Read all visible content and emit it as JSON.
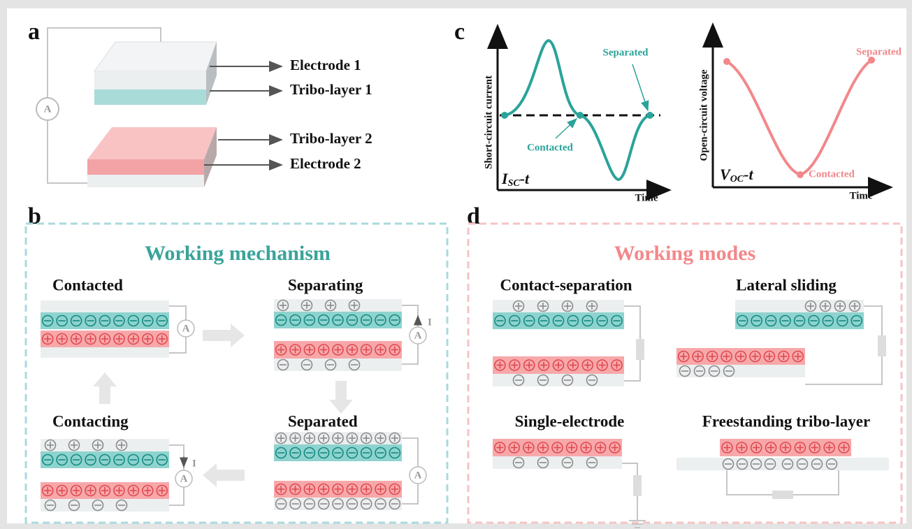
{
  "panel_a": {
    "label": "a",
    "ammeter": "A",
    "layers": [
      "Electrode 1",
      "Tribo-layer 1",
      "Tribo-layer 2",
      "Electrode 2"
    ]
  },
  "panel_b": {
    "label": "b",
    "title": "Working mechanism",
    "ammeter": "A",
    "current": "I",
    "states": [
      "Contacted",
      "Separating",
      "Contacting",
      "Separated"
    ]
  },
  "panel_c": {
    "label": "c",
    "charts": [
      {
        "y_label": "Short-circuit current",
        "x_label": "Time",
        "name": {
          "main": "I",
          "sub": "SC",
          "suffix": "-t"
        },
        "annotations": [
          "Separated",
          "Contacted"
        ]
      },
      {
        "y_label": "Open-circuit voltage",
        "x_label": "Time",
        "name": {
          "main": "V",
          "sub": "OC",
          "suffix": "-t"
        },
        "annotations": [
          "Separated",
          "Contacted"
        ]
      }
    ]
  },
  "panel_d": {
    "label": "d",
    "title": "Working modes",
    "modes": [
      "Contact-separation",
      "Lateral sliding",
      "Single-electrode",
      "Freestanding tribo-layer"
    ]
  }
}
